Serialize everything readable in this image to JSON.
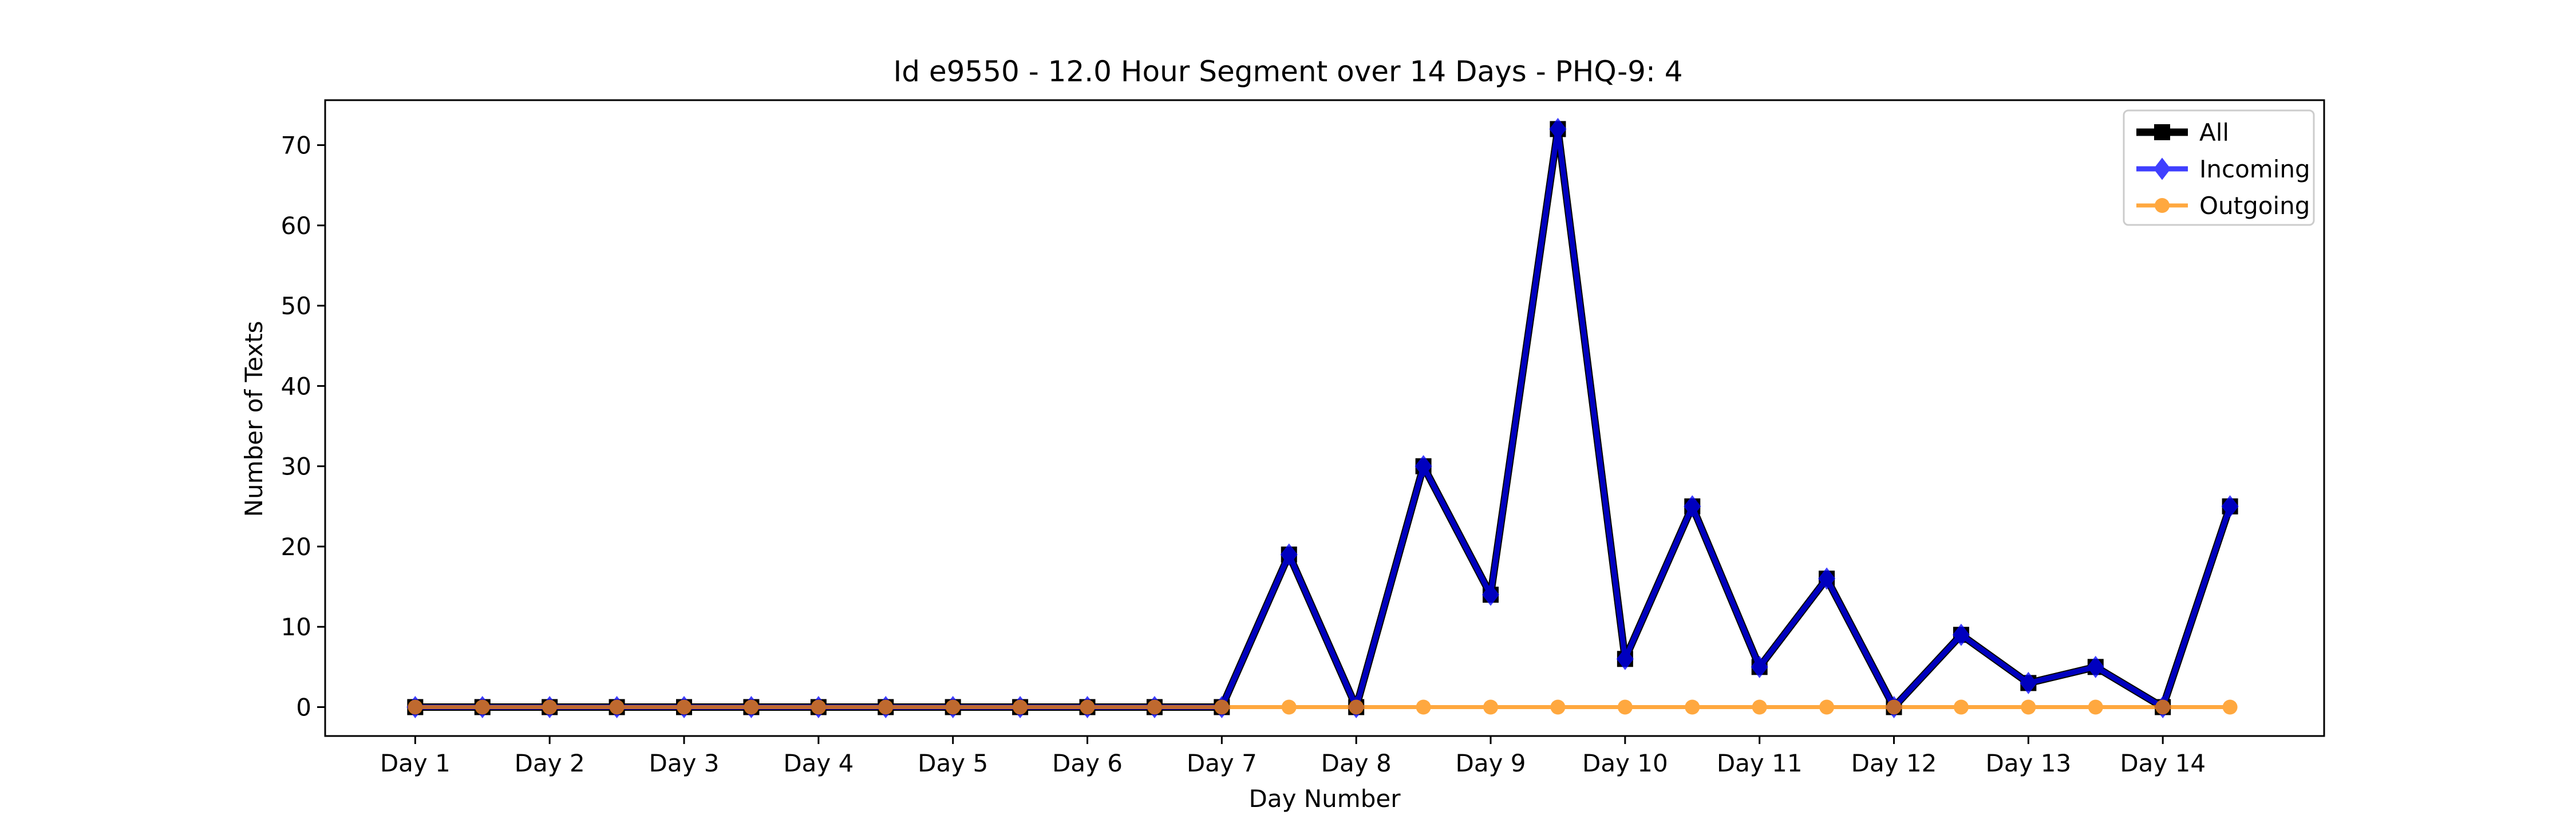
{
  "chart_data": {
    "type": "line",
    "title": "Id e9550 - 12.0 Hour Segment over 14 Days - PHQ-9: 4",
    "xlabel": "Day Number",
    "ylabel": "Number of Texts",
    "x": [
      1,
      1.5,
      2,
      2.5,
      3,
      3.5,
      4,
      4.5,
      5,
      5.5,
      6,
      6.5,
      7,
      7.5,
      8,
      8.5,
      9,
      9.5,
      10,
      10.5,
      11,
      11.5,
      12,
      12.5,
      13,
      13.5,
      14,
      14.5
    ],
    "xticks": [
      1,
      2,
      3,
      4,
      5,
      6,
      7,
      8,
      9,
      10,
      11,
      12,
      13,
      14
    ],
    "xtick_labels": [
      "Day 1",
      "Day 2",
      "Day 3",
      "Day 4",
      "Day 5",
      "Day 6",
      "Day 7",
      "Day 8",
      "Day 9",
      "Day 10",
      "Day 11",
      "Day 12",
      "Day 13",
      "Day 14"
    ],
    "yticks": [
      0,
      10,
      20,
      30,
      40,
      50,
      60,
      70
    ],
    "xlim": [
      0.33,
      15.2
    ],
    "ylim": [
      -3.6,
      75.6
    ],
    "grid": false,
    "legend_position": "top-right",
    "series": [
      {
        "name": "All",
        "color": "#000000",
        "marker": "square",
        "values": [
          0,
          0,
          0,
          0,
          0,
          0,
          0,
          0,
          0,
          0,
          0,
          0,
          0,
          19,
          0,
          30,
          14,
          72,
          6,
          25,
          5,
          16,
          0,
          9,
          3,
          5,
          0,
          25
        ]
      },
      {
        "name": "Incoming",
        "color": "#0000ff",
        "marker": "diamond",
        "values": [
          0,
          0,
          0,
          0,
          0,
          0,
          0,
          0,
          0,
          0,
          0,
          0,
          0,
          19,
          0,
          30,
          14,
          72,
          6,
          25,
          5,
          16,
          0,
          9,
          3,
          5,
          0,
          25
        ]
      },
      {
        "name": "Outgoing",
        "color": "#ff8c00",
        "marker": "circle",
        "values": [
          0,
          0,
          0,
          0,
          0,
          0,
          0,
          0,
          0,
          0,
          0,
          0,
          0,
          0,
          0,
          0,
          0,
          0,
          0,
          0,
          0,
          0,
          0,
          0,
          0,
          0,
          0,
          0
        ]
      }
    ]
  }
}
